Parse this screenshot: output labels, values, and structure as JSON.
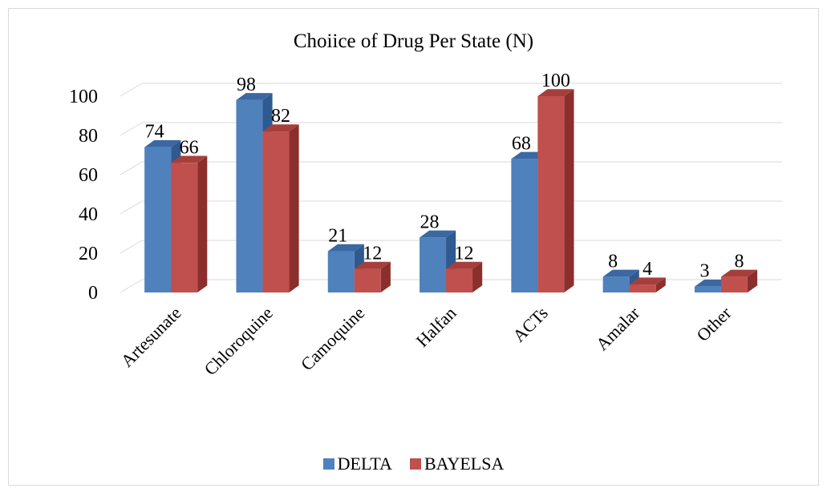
{
  "chart_data": {
    "type": "bar",
    "title": "Choiice of Drug Per State (N)",
    "categories": [
      "Artesunate",
      "Chloroquine",
      "Camoquine",
      "Halfan",
      "ACTs",
      "Amalar",
      "Other"
    ],
    "series": [
      {
        "name": "DELTA",
        "values": [
          74,
          98,
          21,
          28,
          68,
          8,
          3
        ],
        "color": "#4f81bd",
        "side_color": "#2f5a8f",
        "top_color": "#3b68a3"
      },
      {
        "name": "BAYELSA",
        "values": [
          66,
          82,
          12,
          12,
          100,
          4,
          8
        ],
        "color": "#c0504d",
        "side_color": "#8b2f2d",
        "top_color": "#a63f3c"
      }
    ],
    "yticks": [
      0,
      20,
      40,
      60,
      80,
      100
    ],
    "ylim": [
      0,
      100
    ],
    "grid": true,
    "legend_position": "bottom",
    "style": "3d-clustered-column"
  }
}
